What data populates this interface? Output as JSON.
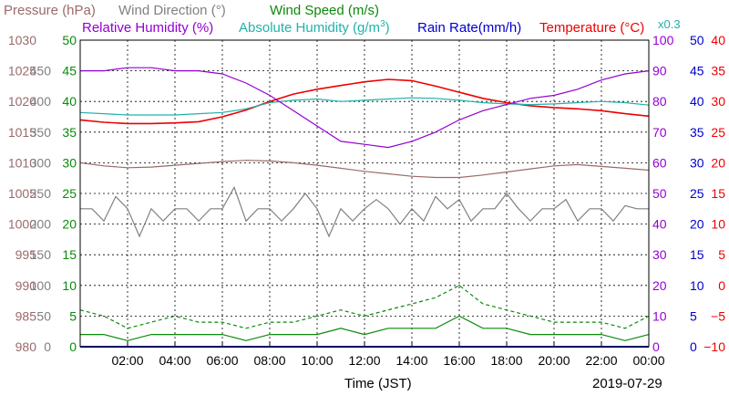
{
  "chart_data": {
    "type": "line",
    "xlabel": "Time (JST)",
    "date": "2019-07-29",
    "x_ticks": [
      "02:00",
      "04:00",
      "06:00",
      "08:00",
      "10:00",
      "12:00",
      "14:00",
      "16:00",
      "18:00",
      "20:00",
      "22:00",
      "00:00"
    ],
    "x_range_hours": [
      0,
      24
    ],
    "grid": true,
    "legend": {
      "pressure": {
        "label": "Pressure (hPa)",
        "color": "#9a6a6a"
      },
      "wind_direction": {
        "label": "Wind Direction (°)",
        "color": "#808080"
      },
      "wind_speed": {
        "label": "Wind Speed (m/s)",
        "color": "#0a8a0a"
      },
      "relative_humidity": {
        "label": "Relative Humidity (%)",
        "color": "#9400d3"
      },
      "absolute_humidity_prefix": "Absolute Humidity (g/m",
      "absolute_humidity_sup": "3",
      "absolute_humidity_suffix": ")",
      "absolute_humidity_color": "#20b2aa",
      "rain_rate": {
        "label": "Rain Rate(mm/h)",
        "color": "#0000cc"
      },
      "temperature": {
        "label": "Temperature (°C)",
        "color": "#ee0000"
      },
      "scale_note": {
        "label": "x0.3",
        "color": "#20b2aa"
      }
    },
    "axes": {
      "pressure": {
        "ticks": [
          "1030",
          "1025",
          "1020",
          "1015",
          "1010",
          "1005",
          "1000",
          "995",
          "990",
          "985",
          "980"
        ],
        "ylim": [
          980,
          1030
        ],
        "color": "#9a6a6a"
      },
      "wind_direction": {
        "ticks": [
          "450",
          "400",
          "350",
          "300",
          "250",
          "200",
          "150",
          "100",
          "50",
          "0"
        ],
        "ylim": [
          0,
          500
        ],
        "color": "#808080"
      },
      "wind_speed": {
        "ticks": [
          "50",
          "45",
          "40",
          "35",
          "30",
          "25",
          "20",
          "15",
          "10",
          "5",
          "0"
        ],
        "ylim": [
          0,
          50
        ],
        "color": "#0a8a0a"
      },
      "relative_humidity": {
        "ticks": [
          "100",
          "90",
          "80",
          "70",
          "60",
          "50",
          "40",
          "30",
          "20",
          "10",
          "0"
        ],
        "ylim": [
          0,
          100
        ],
        "color": "#9400d3"
      },
      "rain_rate": {
        "ticks": [
          "50",
          "45",
          "40",
          "35",
          "30",
          "25",
          "20",
          "15",
          "10",
          "5",
          "0"
        ],
        "ylim": [
          0,
          50
        ],
        "color": "#0000cc"
      },
      "temperature": {
        "ticks": [
          "40",
          "35",
          "30",
          "25",
          "20",
          "15",
          "10",
          "5",
          "0",
          "−5",
          "−10"
        ],
        "ylim": [
          -10,
          40
        ],
        "color": "#ee0000"
      }
    },
    "series": [
      {
        "key": "temperature",
        "axis": "temperature",
        "color": "#ee0000",
        "x": [
          0,
          1,
          2,
          3,
          4,
          5,
          6,
          7,
          8,
          9,
          10,
          11,
          12,
          13,
          14,
          15,
          16,
          17,
          18,
          19,
          20,
          21,
          22,
          23,
          24
        ],
        "y": [
          27.0,
          26.6,
          26.4,
          26.4,
          26.5,
          26.7,
          27.5,
          28.6,
          30.0,
          31.2,
          32.0,
          32.6,
          33.2,
          33.6,
          33.4,
          32.5,
          31.5,
          30.5,
          29.8,
          29.3,
          29.0,
          28.8,
          28.5,
          28.0,
          27.6
        ]
      },
      {
        "key": "absolute_humidity",
        "axis": "rain_rate",
        "scale": 0.3,
        "color": "#20b2aa",
        "x": [
          0,
          1,
          2,
          3,
          4,
          5,
          6,
          7,
          8,
          9,
          10,
          11,
          12,
          13,
          14,
          15,
          16,
          17,
          18,
          19,
          20,
          21,
          22,
          23,
          24
        ],
        "y": [
          38.2,
          38.0,
          37.8,
          37.8,
          37.8,
          38.0,
          38.2,
          38.8,
          39.8,
          40.2,
          40.4,
          40.0,
          40.2,
          40.4,
          40.6,
          40.5,
          40.2,
          39.8,
          39.6,
          39.5,
          39.6,
          39.8,
          40.0,
          39.8,
          39.4
        ]
      },
      {
        "key": "relative_humidity",
        "axis": "relative_humidity",
        "color": "#9400d3",
        "x": [
          0,
          1,
          2,
          3,
          4,
          5,
          6,
          7,
          8,
          9,
          10,
          11,
          12,
          13,
          14,
          15,
          16,
          17,
          18,
          19,
          20,
          21,
          22,
          23,
          24
        ],
        "y": [
          90,
          90,
          91,
          91,
          90,
          90,
          89,
          86,
          82,
          77,
          72,
          67,
          66,
          65,
          67,
          70,
          74,
          77,
          79,
          81,
          82,
          84,
          87,
          89,
          90
        ]
      },
      {
        "key": "pressure",
        "axis": "pressure",
        "color": "#9a6a6a",
        "x": [
          0,
          1,
          2,
          3,
          4,
          5,
          6,
          7,
          8,
          9,
          10,
          11,
          12,
          13,
          14,
          15,
          16,
          17,
          18,
          19,
          20,
          21,
          22,
          23,
          24
        ],
        "y": [
          1010.0,
          1009.5,
          1009.2,
          1009.3,
          1009.6,
          1009.9,
          1010.2,
          1010.4,
          1010.3,
          1010.0,
          1009.6,
          1009.1,
          1008.6,
          1008.2,
          1007.8,
          1007.6,
          1007.6,
          1008.0,
          1008.5,
          1009.0,
          1009.5,
          1009.7,
          1009.4,
          1009.1,
          1008.8
        ]
      },
      {
        "key": "wind_direction",
        "axis": "wind_direction",
        "color": "#808080",
        "x": [
          0,
          0.5,
          1,
          1.5,
          2,
          2.5,
          3,
          3.5,
          4,
          4.5,
          5,
          5.5,
          6,
          6.5,
          7,
          7.5,
          8,
          8.5,
          9,
          9.5,
          10,
          10.5,
          11,
          11.5,
          12,
          12.5,
          13,
          13.5,
          14,
          14.5,
          15,
          15.5,
          16,
          16.5,
          17,
          17.5,
          18,
          18.5,
          19,
          19.5,
          20,
          20.5,
          21,
          21.5,
          22,
          22.5,
          23,
          23.5,
          24
        ],
        "y": [
          225,
          225,
          205,
          245,
          225,
          180,
          225,
          205,
          225,
          225,
          205,
          225,
          225,
          260,
          205,
          225,
          225,
          205,
          225,
          250,
          225,
          180,
          225,
          205,
          225,
          240,
          225,
          200,
          225,
          205,
          245,
          225,
          240,
          205,
          225,
          225,
          250,
          225,
          205,
          225,
          225,
          240,
          205,
          225,
          225,
          205,
          230,
          225,
          225
        ]
      },
      {
        "key": "wind_speed_max",
        "axis": "wind_speed",
        "dashed": true,
        "color": "#0a8a0a",
        "x": [
          0,
          1,
          2,
          3,
          4,
          5,
          6,
          7,
          8,
          9,
          10,
          11,
          12,
          13,
          14,
          15,
          16,
          17,
          18,
          19,
          20,
          21,
          22,
          23,
          24
        ],
        "y": [
          6,
          5,
          3,
          4,
          5,
          4,
          4,
          3,
          4,
          4,
          5,
          6,
          5,
          6,
          7,
          8,
          10,
          7,
          6,
          5,
          4,
          4,
          4,
          3,
          5
        ]
      },
      {
        "key": "wind_speed_mean",
        "axis": "wind_speed",
        "color": "#0a8a0a",
        "x": [
          0,
          1,
          2,
          3,
          4,
          5,
          6,
          7,
          8,
          9,
          10,
          11,
          12,
          13,
          14,
          15,
          16,
          17,
          18,
          19,
          20,
          21,
          22,
          23,
          24
        ],
        "y": [
          2,
          2,
          1,
          2,
          2,
          2,
          2,
          1,
          2,
          2,
          2,
          3,
          2,
          3,
          3,
          3,
          5,
          3,
          3,
          2,
          2,
          2,
          2,
          1,
          2
        ]
      },
      {
        "key": "rain_rate",
        "axis": "rain_rate",
        "color": "#0000cc",
        "x": [
          0,
          24
        ],
        "y": [
          0,
          0
        ]
      }
    ]
  }
}
